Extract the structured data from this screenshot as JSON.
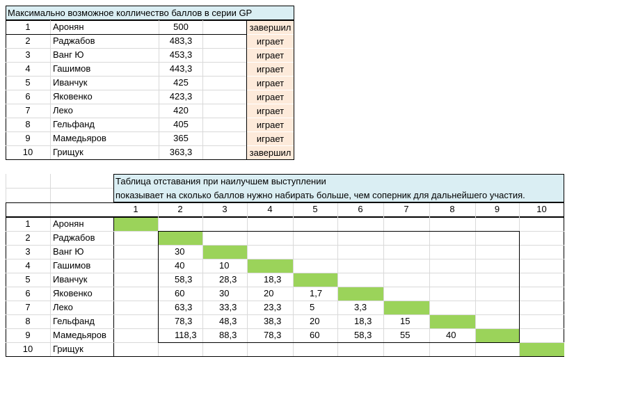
{
  "top": {
    "title": "Максимально возможное колличество баллов в серии GP",
    "rows": [
      {
        "rank": "1",
        "name": "Аронян",
        "score": "500",
        "status": "завершил"
      },
      {
        "rank": "2",
        "name": "Раджабов",
        "score": "483,3",
        "status": "играет"
      },
      {
        "rank": "3",
        "name": "Ванг Ю",
        "score": "453,3",
        "status": "играет"
      },
      {
        "rank": "4",
        "name": "Гашимов",
        "score": "443,3",
        "status": "играет"
      },
      {
        "rank": "5",
        "name": "Иванчук",
        "score": "425",
        "status": "играет"
      },
      {
        "rank": "6",
        "name": "Яковенко",
        "score": "423,3",
        "status": "играет"
      },
      {
        "rank": "7",
        "name": "Леко",
        "score": "420",
        "status": "играет"
      },
      {
        "rank": "8",
        "name": "Гельфанд",
        "score": "405",
        "status": "играет"
      },
      {
        "rank": "9",
        "name": "Мамедьяров",
        "score": "365",
        "status": "играет"
      },
      {
        "rank": "10",
        "name": "Грищук",
        "score": "363,3",
        "status": "завершил"
      }
    ]
  },
  "bottom": {
    "title_line1": "Таблица отставания при наилучшем выступлении",
    "title_line2": "показывает на сколько баллов нужно набирать больше, чем соперник для дальнейшего участия.",
    "columns": [
      "1",
      "2",
      "3",
      "4",
      "5",
      "6",
      "7",
      "8",
      "9",
      "10"
    ],
    "rows": [
      {
        "rank": "1",
        "name": "Аронян",
        "values": [
          "",
          "",
          "",
          "",
          "",
          "",
          "",
          "",
          "",
          ""
        ]
      },
      {
        "rank": "2",
        "name": "Раджабов",
        "values": [
          "",
          "",
          "",
          "",
          "",
          "",
          "",
          "",
          "",
          ""
        ]
      },
      {
        "rank": "3",
        "name": "Ванг Ю",
        "values": [
          "",
          "30",
          "",
          "",
          "",
          "",
          "",
          "",
          "",
          ""
        ]
      },
      {
        "rank": "4",
        "name": "Гашимов",
        "values": [
          "",
          "40",
          "10",
          "",
          "",
          "",
          "",
          "",
          "",
          ""
        ]
      },
      {
        "rank": "5",
        "name": "Иванчук",
        "values": [
          "",
          "58,3",
          "28,3",
          "18,3",
          "",
          "",
          "",
          "",
          "",
          ""
        ]
      },
      {
        "rank": "6",
        "name": "Яковенко",
        "values": [
          "",
          "60",
          "30",
          "20",
          "1,7",
          "",
          "",
          "",
          "",
          ""
        ]
      },
      {
        "rank": "7",
        "name": "Леко",
        "values": [
          "",
          "63,3",
          "33,3",
          "23,3",
          "5",
          "3,3",
          "",
          "",
          "",
          ""
        ]
      },
      {
        "rank": "8",
        "name": "Гельфанд",
        "values": [
          "",
          "78,3",
          "48,3",
          "38,3",
          "20",
          "18,3",
          "15",
          "",
          "",
          ""
        ]
      },
      {
        "rank": "9",
        "name": "Мамедьяров",
        "values": [
          "",
          "118,3",
          "88,3",
          "78,3",
          "60",
          "58,3",
          "55",
          "40",
          "",
          ""
        ]
      },
      {
        "rank": "10",
        "name": "Грищук",
        "values": [
          "",
          "",
          "",
          "",
          "",
          "",
          "",
          "",
          "",
          ""
        ]
      }
    ],
    "highlight_color": "#9bd35a"
  }
}
